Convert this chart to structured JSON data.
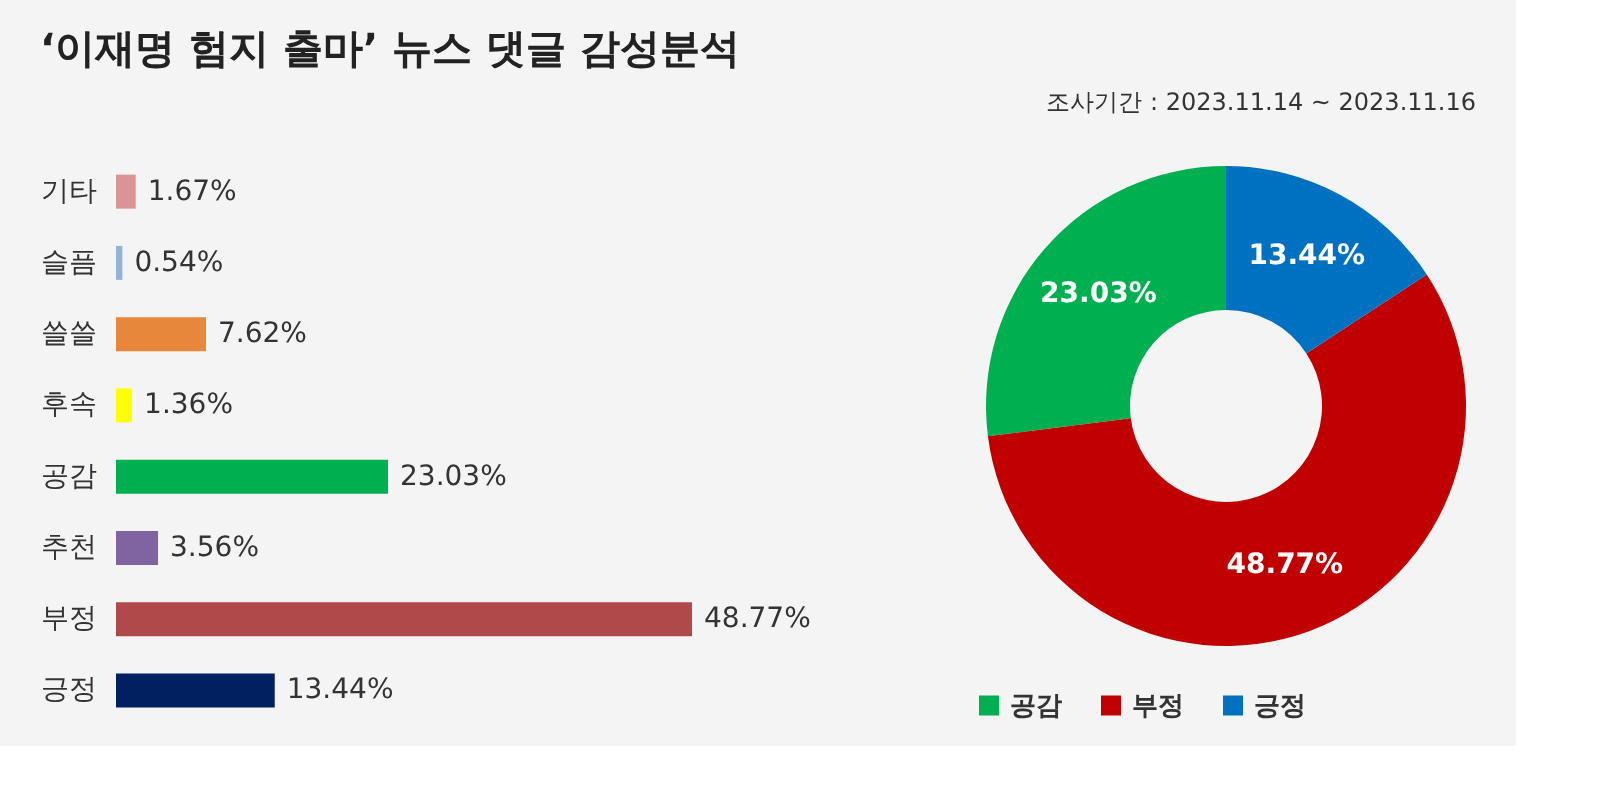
{
  "chart_data": [
    {
      "type": "bar",
      "title": "‘이재명 험지 출마’ 뉴스 댓글 감성분석",
      "orientation": "horizontal",
      "categories": [
        "기타",
        "슬픔",
        "쓸쓸",
        "후속",
        "공감",
        "추천",
        "부정",
        "긍정"
      ],
      "values": [
        1.67,
        0.54,
        7.62,
        1.36,
        23.03,
        3.56,
        48.77,
        13.44
      ],
      "colors": [
        "#d99594",
        "#95b3d7",
        "#e6873c",
        "#ffff00",
        "#00b050",
        "#8064a2",
        "#b04a4a",
        "#002060"
      ],
      "value_labels": [
        "1.67%",
        "0.54%",
        "7.62%",
        "1.36%",
        "23.03%",
        "3.56%",
        "48.77%",
        "13.44%"
      ],
      "tick_labels": "y"
    },
    {
      "type": "donut",
      "annotations": [
        "조사기간 : 2023.11.14 ~ 2023.11.16"
      ],
      "categories": [
        "공감",
        "부정",
        "긍정"
      ],
      "values": [
        23.03,
        48.77,
        13.44
      ],
      "colors": [
        "#00b050",
        "#c00000",
        "#0070c0"
      ],
      "value_labels": [
        "23.03%",
        "48.77%",
        "13.44%"
      ],
      "legend": "bottom"
    }
  ]
}
